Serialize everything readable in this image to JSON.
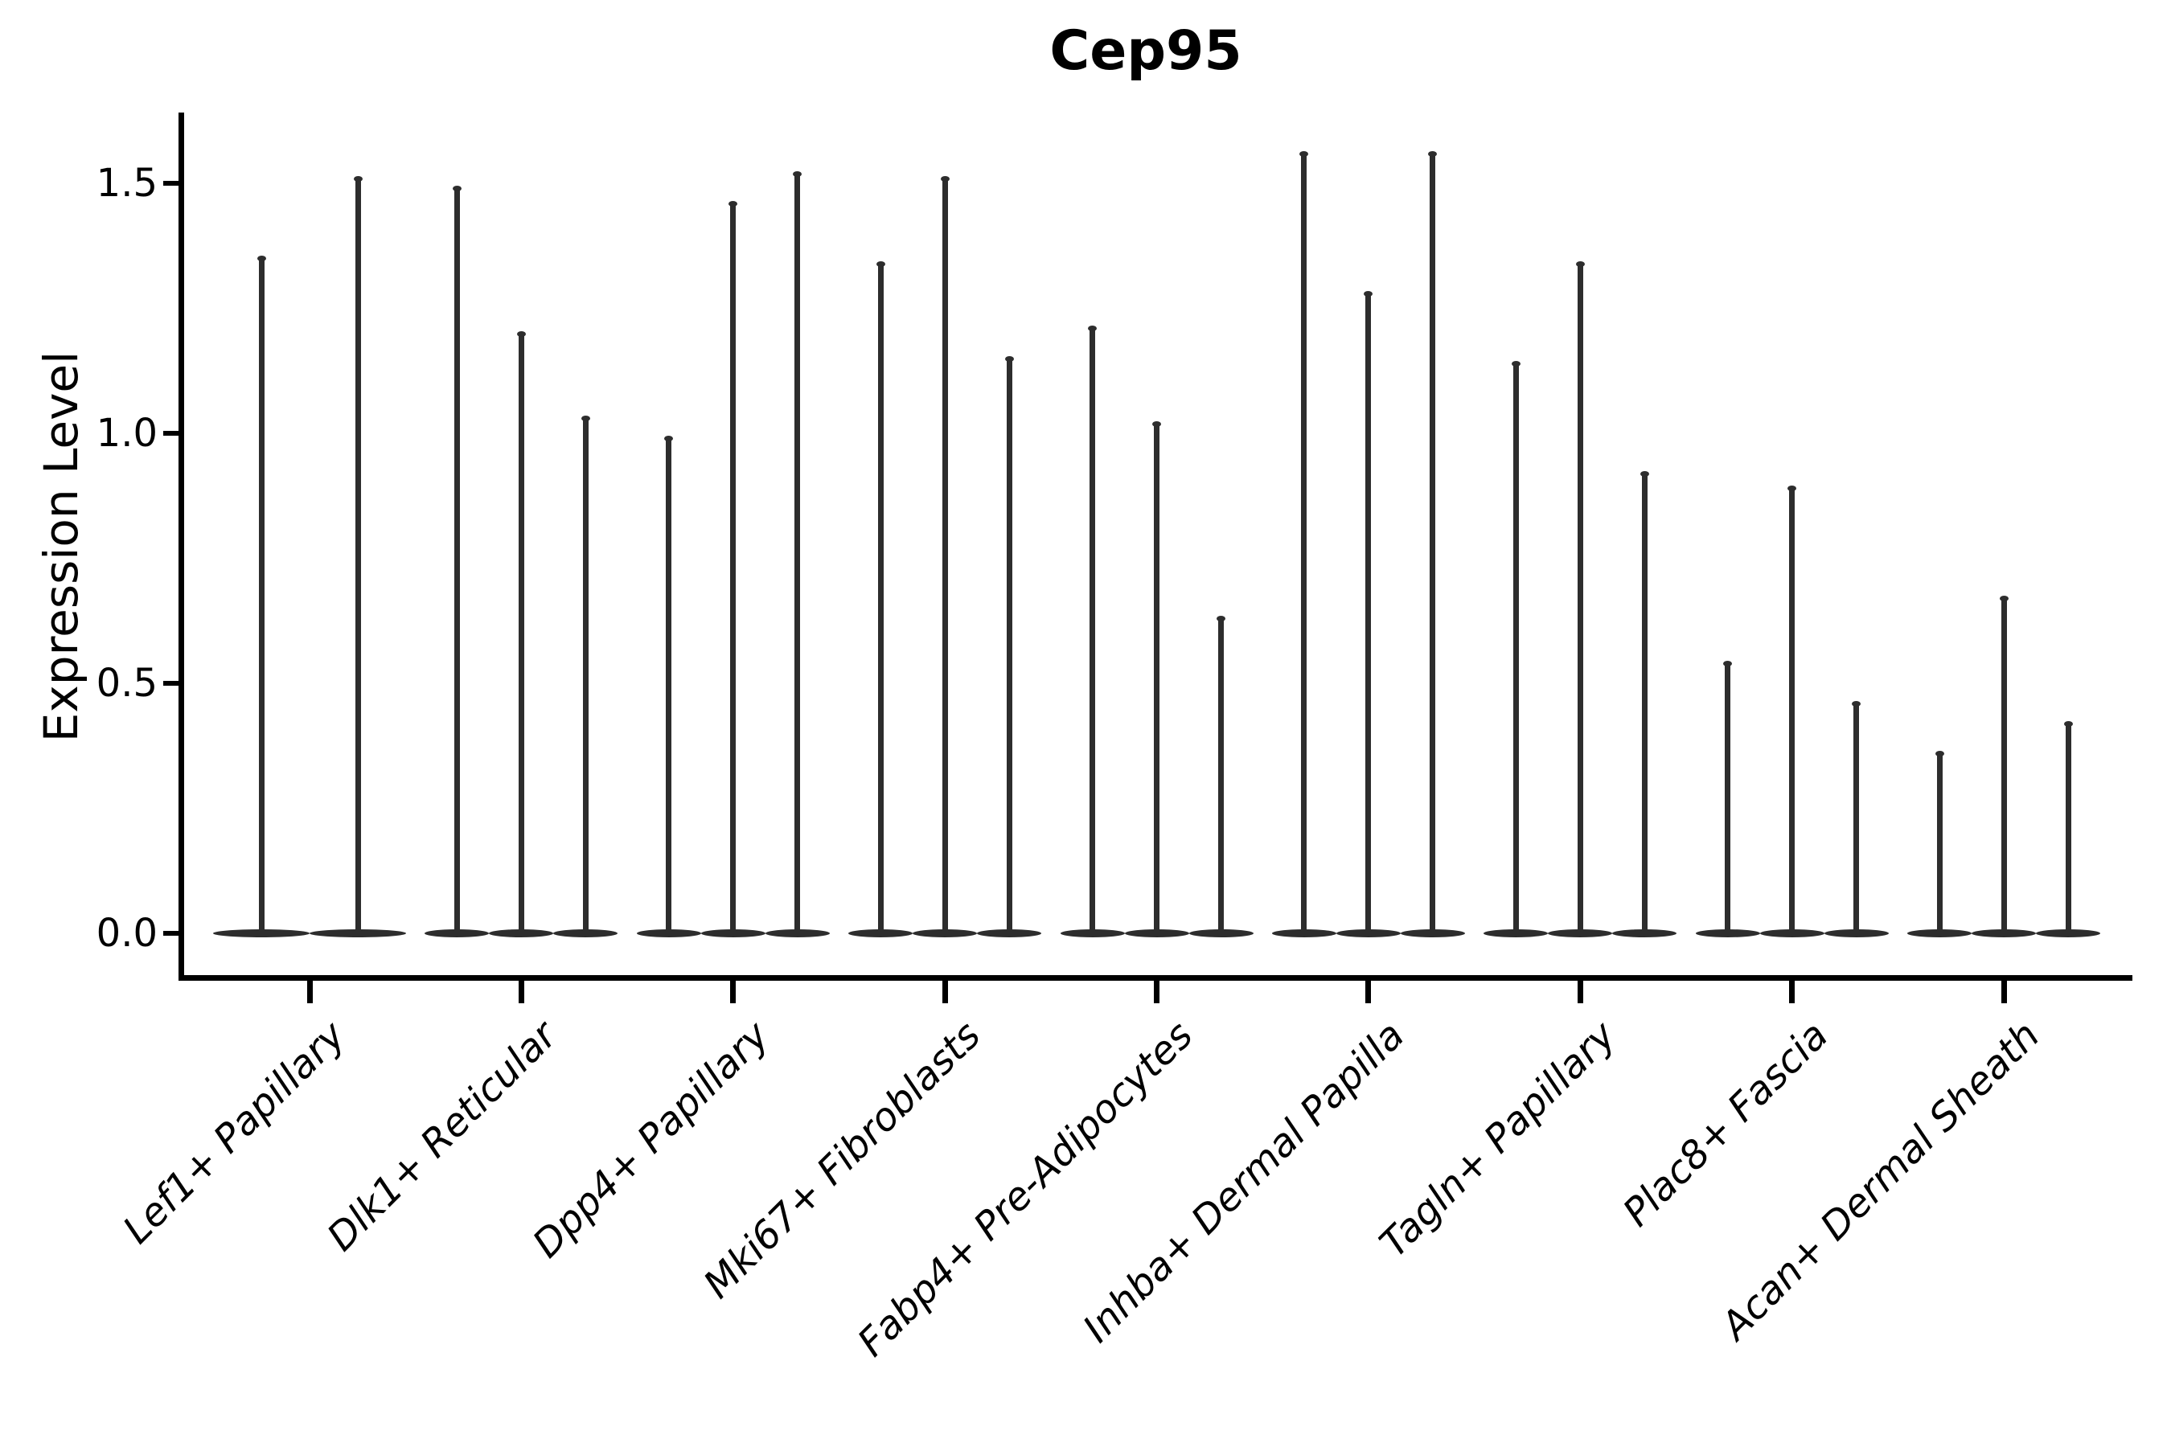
{
  "title": "Cep95",
  "axes": {
    "y_label": "Expression Level",
    "y_tick_labels": [
      "0.0",
      "0.5",
      "1.0",
      "1.5"
    ]
  },
  "colors": {
    "ink": "#000000",
    "violin": "#2d2d2d",
    "background": "#ffffff"
  },
  "chart_data": {
    "type": "violin",
    "title": "Cep95",
    "xlabel": "",
    "ylabel": "Expression Level",
    "ylim": [
      -0.09,
      1.63
    ],
    "yticks": [
      0.0,
      0.5,
      1.0,
      1.5
    ],
    "grid": false,
    "legend": "none",
    "description": "Single-gene violin plot of Cep95 expression across 9 fibroblast cell-type groups; each group contains narrow spike-shaped violins (2 in the first group, 3 in all others) with wide flat bases at expression 0 and thin spikes rising to the maximum expression value.",
    "categories": [
      "Lef1+ Papillary",
      "Dlk1+ Reticular",
      "Dpp4+ Papillary",
      "Mki67+ Fibroblasts",
      "Fabp4+ Pre-Adipocytes",
      "Inhba+ Dermal Papilla",
      "Tagln+ Papillary",
      "Plac8+ Fascia",
      "Acan+ Dermal Sheath"
    ],
    "groups": [
      {
        "category": "Lef1+ Papillary",
        "violin_max_expression": [
          1.35,
          1.51
        ]
      },
      {
        "category": "Dlk1+ Reticular",
        "violin_max_expression": [
          1.49,
          1.2,
          1.03
        ]
      },
      {
        "category": "Dpp4+ Papillary",
        "violin_max_expression": [
          0.99,
          1.46,
          1.52
        ]
      },
      {
        "category": "Mki67+ Fibroblasts",
        "violin_max_expression": [
          1.34,
          1.51,
          1.15
        ]
      },
      {
        "category": "Fabp4+ Pre-Adipocytes",
        "violin_max_expression": [
          1.21,
          1.02,
          0.63
        ]
      },
      {
        "category": "Inhba+ Dermal Papilla",
        "violin_max_expression": [
          1.56,
          1.28,
          1.56
        ]
      },
      {
        "category": "Tagln+ Papillary",
        "violin_max_expression": [
          1.14,
          1.34,
          0.92
        ]
      },
      {
        "category": "Plac8+ Fascia",
        "violin_max_expression": [
          0.54,
          0.89,
          0.46
        ]
      },
      {
        "category": "Acan+ Dermal Sheath",
        "violin_max_expression": [
          0.36,
          0.67,
          0.42
        ]
      }
    ]
  }
}
